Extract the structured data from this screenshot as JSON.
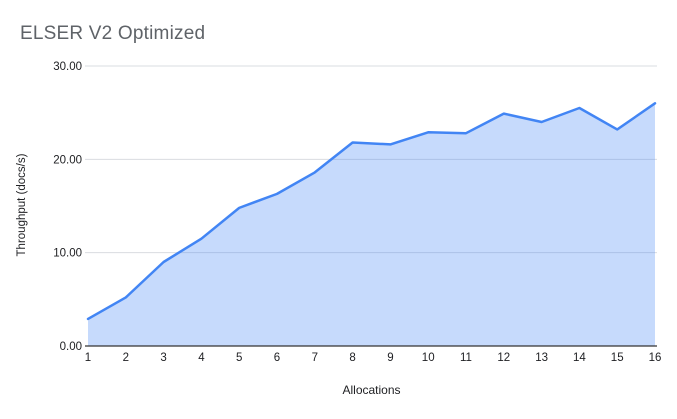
{
  "chart_data": {
    "type": "area",
    "title": "ELSER V2 Optimized",
    "xlabel": "Allocations",
    "ylabel": "Throughput (docs/s)",
    "categories": [
      "1",
      "2",
      "3",
      "4",
      "5",
      "6",
      "7",
      "8",
      "9",
      "10",
      "11",
      "12",
      "13",
      "14",
      "15",
      "16"
    ],
    "values": [
      2.9,
      5.2,
      9.0,
      11.5,
      14.8,
      16.3,
      18.6,
      21.8,
      21.6,
      22.9,
      22.8,
      24.9,
      24.0,
      25.5,
      23.2,
      26.0
    ],
    "series_name": "Throughput (docs/s)",
    "y_ticks": [
      "0.00",
      "10.00",
      "20.00",
      "30.00"
    ],
    "ylim": [
      0,
      30
    ],
    "grid": true,
    "legend": "none",
    "colors": {
      "line": "#4285f4",
      "fill": "rgba(66,133,244,0.30)",
      "grid": "#dadce0",
      "axis": "#333333",
      "title": "#5f6368",
      "tick_label": "#202124",
      "axis_title": "#202124",
      "background": "#ffffff"
    }
  }
}
